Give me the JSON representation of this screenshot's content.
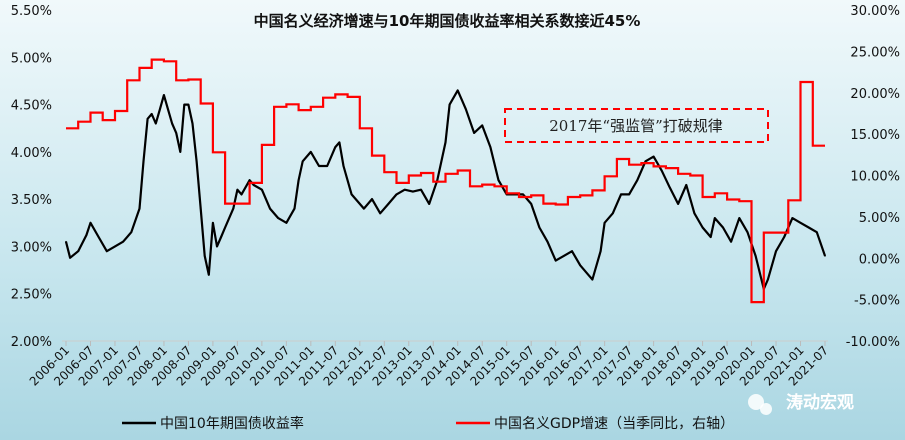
{
  "chart_data": {
    "type": "line",
    "title": "中国名义经济增速与10年期国债收益率相关系数接近45%",
    "annotation": "2017年“强监管”打破规律",
    "watermark": "涛动宏观",
    "x_tick_labels": [
      "2006-01",
      "2006-07",
      "2007-01",
      "2007-07",
      "2008-01",
      "2008-07",
      "2009-01",
      "2009-07",
      "2010-01",
      "2010-07",
      "2011-01",
      "2011-07",
      "2012-01",
      "2012-07",
      "2013-01",
      "2013-07",
      "2014-01",
      "2014-07",
      "2015-01",
      "2015-07",
      "2016-01",
      "2016-07",
      "2017-01",
      "2017-07",
      "2018-01",
      "2018-07",
      "2019-01",
      "2019-07",
      "2020-01",
      "2020-07",
      "2021-01",
      "2021-07"
    ],
    "y_left": {
      "ticks": [
        "5.50%",
        "5.00%",
        "4.50%",
        "4.00%",
        "3.50%",
        "3.00%",
        "2.50%",
        "2.00%"
      ],
      "range": [
        2.0,
        5.5
      ]
    },
    "y_right": {
      "ticks": [
        "30.00%",
        "25.00%",
        "20.00%",
        "15.00%",
        "10.00%",
        "5.00%",
        "0.00%",
        "-5.00%",
        "-10.00%"
      ],
      "range": [
        -10,
        30
      ]
    },
    "grid": false,
    "legend_position": "bottom",
    "series": [
      {
        "name": "中国10年期国债收益率",
        "axis": "left",
        "color": "#000000",
        "x": [
          "2006-01",
          "2006-02",
          "2006-04",
          "2006-06",
          "2006-07",
          "2006-09",
          "2006-11",
          "2007-01",
          "2007-03",
          "2007-05",
          "2007-07",
          "2007-08",
          "2007-09",
          "2007-10",
          "2007-11",
          "2007-12",
          "2008-01",
          "2008-02",
          "2008-03",
          "2008-04",
          "2008-05",
          "2008-06",
          "2008-07",
          "2008-08",
          "2008-09",
          "2008-10",
          "2008-11",
          "2008-12",
          "2009-01",
          "2009-02",
          "2009-03",
          "2009-04",
          "2009-06",
          "2009-07",
          "2009-08",
          "2009-10",
          "2009-11",
          "2010-01",
          "2010-03",
          "2010-05",
          "2010-07",
          "2010-09",
          "2010-10",
          "2010-11",
          "2011-01",
          "2011-03",
          "2011-05",
          "2011-07",
          "2011-08",
          "2011-09",
          "2011-11",
          "2011-12",
          "2012-02",
          "2012-04",
          "2012-06",
          "2012-08",
          "2012-10",
          "2012-12",
          "2013-02",
          "2013-04",
          "2013-06",
          "2013-08",
          "2013-10",
          "2013-11",
          "2014-01",
          "2014-02",
          "2014-03",
          "2014-05",
          "2014-07",
          "2014-09",
          "2014-11",
          "2015-01",
          "2015-03",
          "2015-05",
          "2015-07",
          "2015-09",
          "2015-11",
          "2016-01",
          "2016-03",
          "2016-05",
          "2016-07",
          "2016-09",
          "2016-10",
          "2016-12",
          "2017-01",
          "2017-03",
          "2017-05",
          "2017-07",
          "2017-09",
          "2017-11",
          "2018-01",
          "2018-03",
          "2018-05",
          "2018-07",
          "2018-09",
          "2018-11",
          "2019-01",
          "2019-03",
          "2019-04",
          "2019-06",
          "2019-08",
          "2019-10",
          "2019-12",
          "2020-02",
          "2020-04",
          "2020-05",
          "2020-07",
          "2020-09",
          "2020-11",
          "2021-01",
          "2021-03",
          "2021-05",
          "2021-07"
        ],
        "values": [
          3.05,
          2.88,
          2.95,
          3.12,
          3.25,
          3.1,
          2.95,
          3.0,
          3.05,
          3.15,
          3.4,
          3.9,
          4.35,
          4.4,
          4.3,
          4.45,
          4.6,
          4.45,
          4.3,
          4.2,
          4.0,
          4.5,
          4.5,
          4.3,
          3.9,
          3.4,
          2.9,
          2.7,
          3.25,
          3.0,
          3.1,
          3.2,
          3.4,
          3.6,
          3.55,
          3.7,
          3.65,
          3.6,
          3.4,
          3.3,
          3.25,
          3.4,
          3.7,
          3.9,
          4.0,
          3.85,
          3.85,
          4.05,
          4.1,
          3.85,
          3.55,
          3.5,
          3.4,
          3.5,
          3.35,
          3.45,
          3.55,
          3.6,
          3.58,
          3.6,
          3.45,
          3.7,
          4.1,
          4.5,
          4.65,
          4.55,
          4.45,
          4.2,
          4.28,
          4.05,
          3.7,
          3.55,
          3.55,
          3.55,
          3.45,
          3.2,
          3.05,
          2.85,
          2.9,
          2.95,
          2.8,
          2.7,
          2.65,
          2.95,
          3.25,
          3.35,
          3.55,
          3.55,
          3.7,
          3.9,
          3.95,
          3.8,
          3.62,
          3.45,
          3.65,
          3.35,
          3.2,
          3.1,
          3.3,
          3.2,
          3.05,
          3.3,
          3.15,
          2.9,
          2.55,
          2.65,
          2.95,
          3.1,
          3.3,
          3.25,
          3.2,
          3.15,
          2.9
        ]
      },
      {
        "name": "中国名义GDP增速（当季同比，右轴）",
        "axis": "right",
        "color": "#ff0000",
        "x": [
          "2006Q1",
          "2006Q2",
          "2006Q3",
          "2006Q4",
          "2007Q1",
          "2007Q2",
          "2007Q3",
          "2007Q4",
          "2008Q1",
          "2008Q2",
          "2008Q3",
          "2008Q4",
          "2009Q1",
          "2009Q2",
          "2009Q3",
          "2009Q4",
          "2010Q1",
          "2010Q2",
          "2010Q3",
          "2010Q4",
          "2011Q1",
          "2011Q2",
          "2011Q3",
          "2011Q4",
          "2012Q1",
          "2012Q2",
          "2012Q3",
          "2012Q4",
          "2013Q1",
          "2013Q2",
          "2013Q3",
          "2013Q4",
          "2014Q1",
          "2014Q2",
          "2014Q3",
          "2014Q4",
          "2015Q1",
          "2015Q2",
          "2015Q3",
          "2015Q4",
          "2016Q1",
          "2016Q2",
          "2016Q3",
          "2016Q4",
          "2017Q1",
          "2017Q2",
          "2017Q3",
          "2017Q4",
          "2018Q1",
          "2018Q2",
          "2018Q3",
          "2018Q4",
          "2019Q1",
          "2019Q2",
          "2019Q3",
          "2019Q4",
          "2020Q1",
          "2020Q2",
          "2020Q3",
          "2020Q4",
          "2021Q1",
          "2021Q2"
        ],
        "values": [
          15.7,
          16.5,
          17.6,
          16.7,
          17.8,
          21.5,
          23.0,
          24.0,
          23.8,
          21.5,
          21.6,
          18.7,
          12.8,
          6.6,
          6.6,
          9.1,
          13.7,
          18.3,
          18.6,
          17.9,
          18.3,
          19.4,
          19.8,
          19.5,
          15.7,
          12.4,
          10.4,
          9.1,
          10.0,
          10.3,
          9.25,
          10.2,
          10.6,
          8.7,
          8.9,
          8.7,
          7.85,
          7.4,
          7.6,
          6.6,
          6.5,
          7.4,
          7.6,
          8.2,
          9.9,
          12.0,
          11.3,
          11.5,
          11.1,
          10.9,
          10.2,
          10.0,
          7.4,
          7.85,
          7.1,
          6.9,
          -5.3,
          3.1,
          3.1,
          7.0,
          21.3,
          13.6
        ]
      }
    ]
  }
}
